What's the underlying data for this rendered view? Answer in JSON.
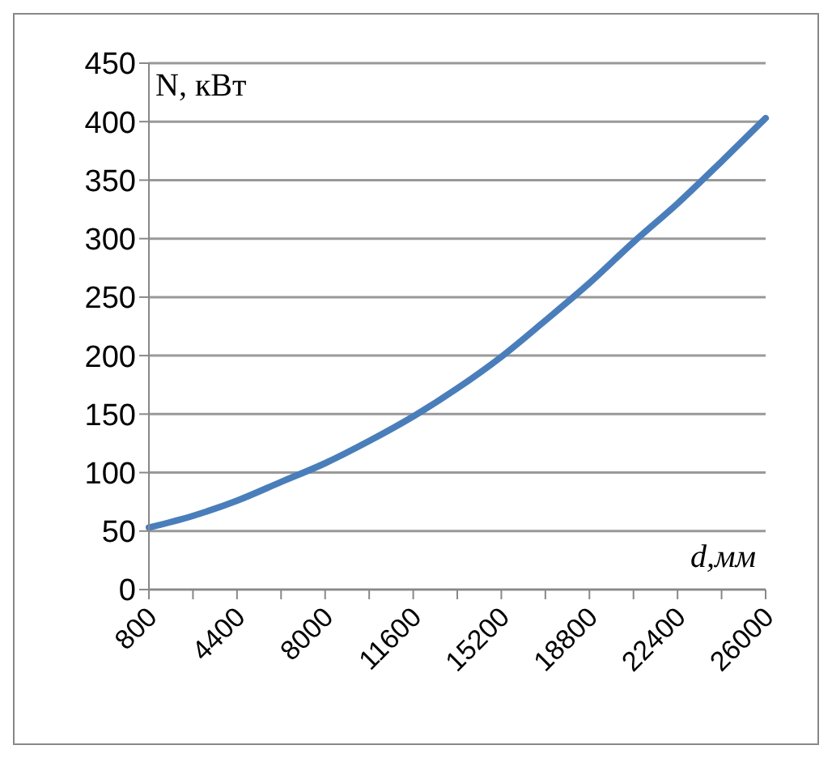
{
  "chart_data": {
    "type": "line",
    "xlabel": "d,мм",
    "ylabel": "N, кВт",
    "categories": [
      "800",
      null,
      "4400",
      null,
      "8000",
      null,
      "11600",
      null,
      "15200",
      null,
      "18800",
      null,
      "22400",
      null,
      "26000"
    ],
    "series": [
      {
        "color": "#4a7ebb",
        "values": [
          53,
          63,
          76,
          92,
          108,
          127,
          148,
          172,
          199,
          230,
          262,
          297,
          330,
          366,
          403
        ]
      }
    ],
    "ylim": [
      0,
      450
    ],
    "yticks": [
      0,
      50,
      100,
      150,
      200,
      250,
      300,
      350,
      400,
      450
    ],
    "grid": "y",
    "marker": "none",
    "line_style": "solid"
  }
}
